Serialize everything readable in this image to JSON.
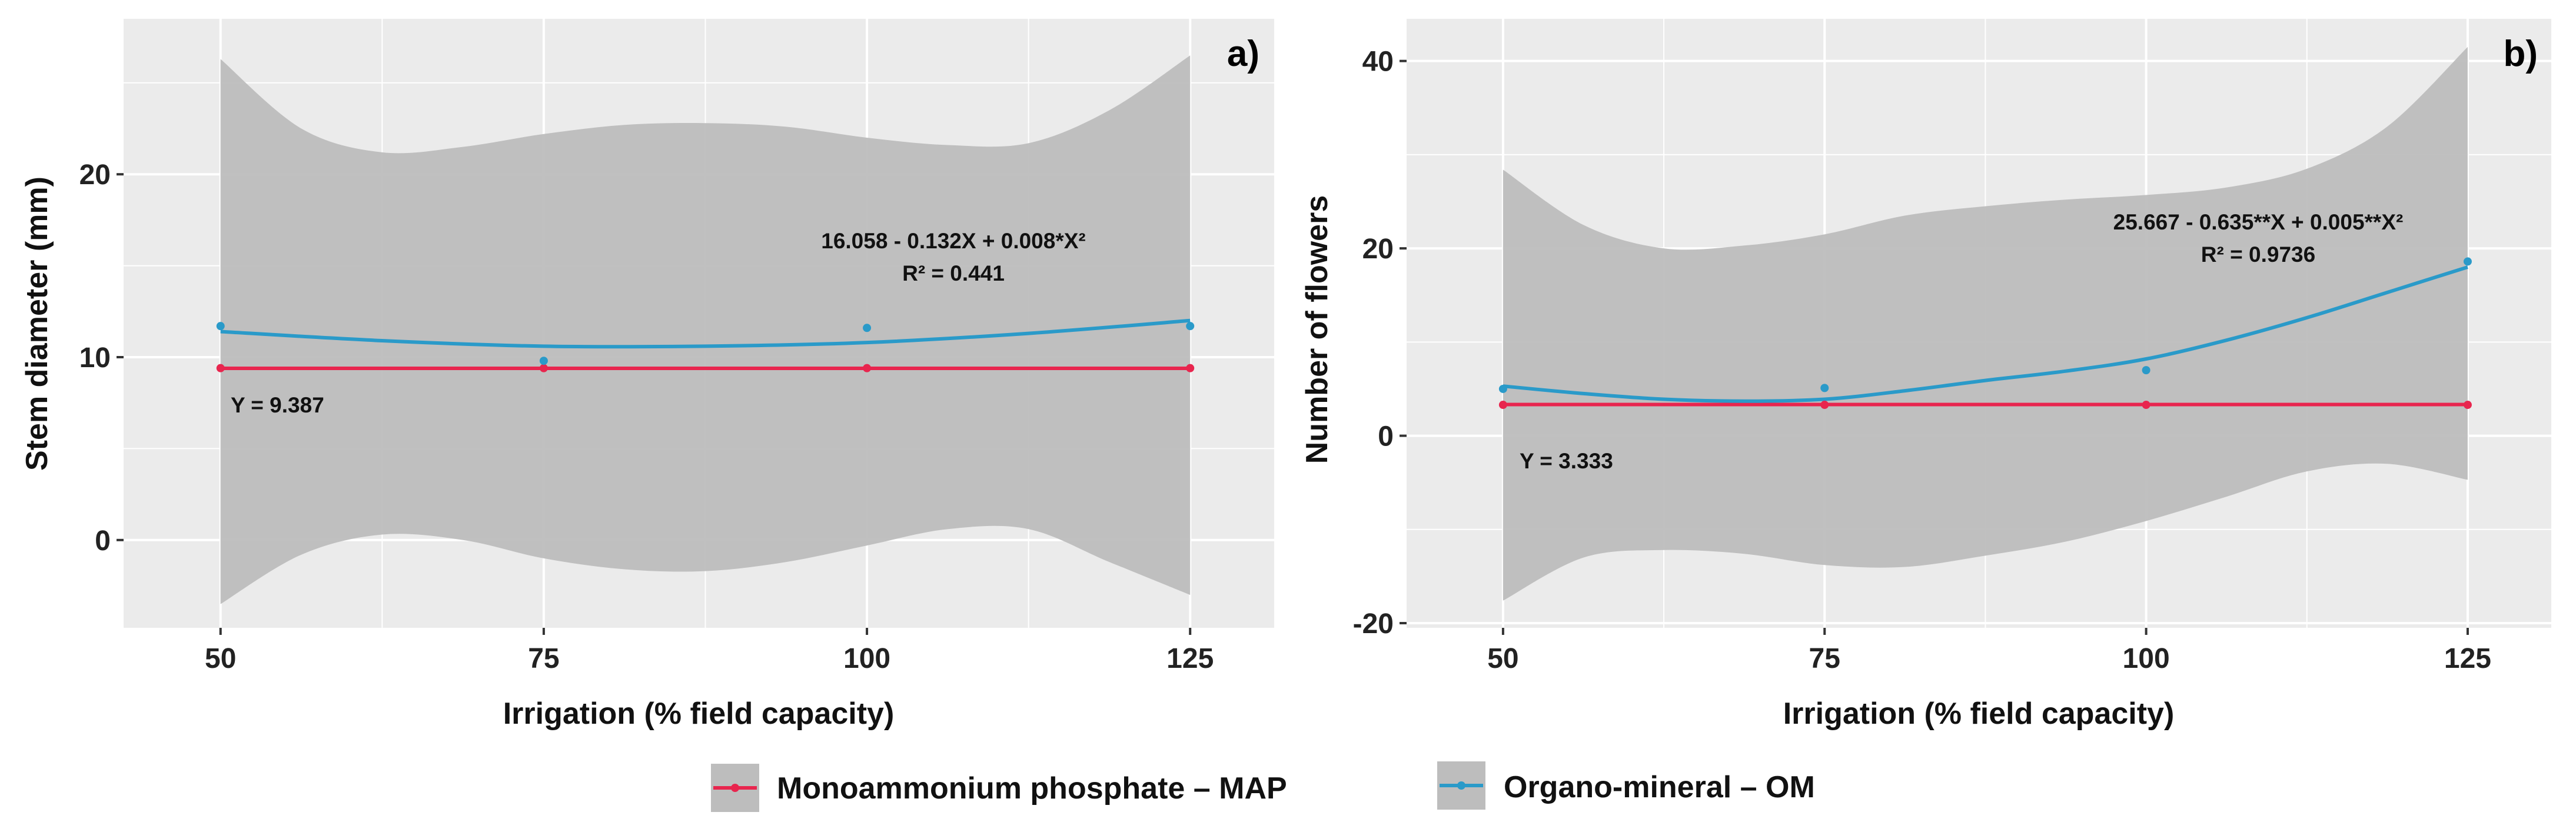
{
  "colors": {
    "map": "#e8254e",
    "om": "#2a9ac9",
    "panel_bg": "#ebebeb",
    "gridline": "#ffffff",
    "ribbon": "#bdbdbd"
  },
  "chart_data": [
    {
      "type": "line",
      "panel_label": "a)",
      "xlabel": "Irrigation (% field capacity)",
      "ylabel": "Stem diameter (mm)",
      "xlim": [
        42.5,
        131.5
      ],
      "ylim": [
        -4.8,
        28.5
      ],
      "x_ticks": [
        50,
        75,
        100,
        125
      ],
      "y_ticks": [
        0,
        10,
        20
      ],
      "x_tick_labels": [
        "50",
        "75",
        "100",
        "125"
      ],
      "y_tick_labels": [
        "0",
        "10",
        "20"
      ],
      "series": [
        {
          "name": "Monoammonium phosphate – MAP",
          "x": [
            50,
            75,
            100,
            125
          ],
          "observed": [
            9.4,
            9.4,
            9.4,
            9.4
          ],
          "fit": {
            "model": "constant",
            "value": 9.387
          }
        },
        {
          "name": "Organo-mineral – OM",
          "x": [
            50,
            75,
            100,
            125
          ],
          "observed": [
            11.7,
            9.8,
            11.6,
            11.7
          ],
          "fit": {
            "model": "smooth",
            "x": [
              50,
              62.5,
              75,
              87.5,
              100,
              112.5,
              125
            ],
            "y": [
              11.4,
              10.9,
              10.6,
              10.6,
              10.8,
              11.3,
              12.0
            ]
          }
        }
      ],
      "confidence_band": {
        "x": [
          50,
          56.25,
          62.5,
          68.75,
          75,
          81.25,
          87.5,
          93.75,
          100,
          106.25,
          112.5,
          118.75,
          125
        ],
        "upper": [
          26.3,
          22.5,
          21.2,
          21.5,
          22.2,
          22.7,
          22.8,
          22.6,
          22.0,
          21.6,
          21.7,
          23.5,
          26.5
        ],
        "lower": [
          -3.5,
          -0.8,
          0.3,
          0.0,
          -1.0,
          -1.6,
          -1.7,
          -1.2,
          -0.3,
          0.6,
          0.6,
          -1.2,
          -3.0
        ]
      },
      "annotations": [
        {
          "text": "Y = 9.387"
        },
        {
          "text": "16.058 - 0.132X + 0.008*X²"
        },
        {
          "text": "R² = 0.441"
        }
      ]
    },
    {
      "type": "line",
      "panel_label": "b)",
      "xlabel": "Irrigation (% field capacity)",
      "ylabel": "Number of flowers",
      "xlim": [
        42.5,
        131.5
      ],
      "ylim": [
        -20.5,
        44.5
      ],
      "x_ticks": [
        50,
        75,
        100,
        125
      ],
      "y_ticks": [
        -20,
        0,
        20,
        40
      ],
      "x_tick_labels": [
        "50",
        "75",
        "100",
        "125"
      ],
      "y_tick_labels": [
        "-20",
        "0",
        "20",
        "40"
      ],
      "series": [
        {
          "name": "Monoammonium phosphate – MAP",
          "x": [
            50,
            75,
            100,
            125
          ],
          "observed": [
            3.3,
            3.3,
            3.3,
            3.3
          ],
          "fit": {
            "model": "constant",
            "value": 3.333
          }
        },
        {
          "name": "Organo-mineral – OM",
          "x": [
            50,
            75,
            100,
            125
          ],
          "observed": [
            5.0,
            5.1,
            7.0,
            18.6
          ],
          "fit": {
            "model": "smooth",
            "x": [
              50,
              56.25,
              62.5,
              68.75,
              75,
              81.25,
              87.5,
              93.75,
              100,
              106.25,
              112.5,
              118.75,
              125
            ],
            "y": [
              5.3,
              4.5,
              3.9,
              3.7,
              3.9,
              4.8,
              5.9,
              6.9,
              8.2,
              10.2,
              12.6,
              15.3,
              18.0
            ]
          }
        }
      ],
      "confidence_band": {
        "x": [
          50,
          56.25,
          62.5,
          68.75,
          75,
          81.25,
          87.5,
          93.75,
          100,
          106.25,
          112.5,
          118.75,
          125
        ],
        "upper": [
          28.4,
          22.5,
          20.0,
          20.3,
          21.5,
          23.5,
          24.5,
          25.2,
          25.7,
          26.5,
          28.5,
          33.0,
          41.5
        ],
        "lower": [
          -17.6,
          -13.0,
          -12.2,
          -12.6,
          -13.8,
          -14.0,
          -12.8,
          -11.3,
          -9.1,
          -6.5,
          -3.8,
          -3.0,
          -4.7
        ]
      },
      "annotations": [
        {
          "text": "Y = 3.333"
        },
        {
          "text": "25.667 - 0.635**X + 0.005**X²"
        },
        {
          "text": "R² = 0.9736"
        }
      ]
    }
  ],
  "legend": {
    "placement": "bottom",
    "items": [
      {
        "label": "Monoammonium phosphate – MAP"
      },
      {
        "label": "Organo-mineral – OM"
      }
    ]
  }
}
